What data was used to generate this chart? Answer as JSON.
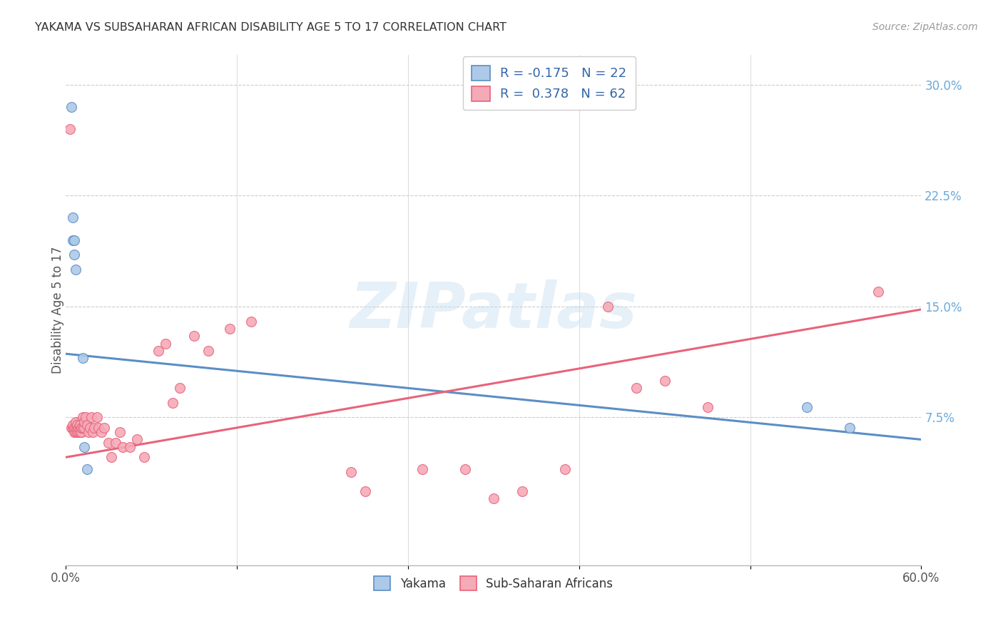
{
  "title": "YAKAMA VS SUBSAHARAN AFRICAN DISABILITY AGE 5 TO 17 CORRELATION CHART",
  "source": "Source: ZipAtlas.com",
  "ylabel": "Disability Age 5 to 17",
  "xlim": [
    0.0,
    0.6
  ],
  "ylim": [
    -0.025,
    0.32
  ],
  "xticks": [
    0.0,
    0.12,
    0.24,
    0.36,
    0.48,
    0.6
  ],
  "xticklabels": [
    "0.0%",
    "",
    "",
    "",
    "",
    "60.0%"
  ],
  "yticks_right": [
    0.075,
    0.15,
    0.225,
    0.3
  ],
  "yticklabels_right": [
    "7.5%",
    "15.0%",
    "22.5%",
    "30.0%"
  ],
  "legend_r1": "-0.175",
  "legend_n1": "22",
  "legend_r2": "0.378",
  "legend_n2": "62",
  "color_yakama": "#adc9e8",
  "color_subsaharan": "#f5aab8",
  "color_line_yakama": "#5b8ec4",
  "color_line_subsaharan": "#e8637a",
  "color_title": "#333333",
  "color_source": "#999999",
  "color_axis_right": "#6aaadd",
  "watermark_color": "#c8dff0",
  "grid_color": "#cccccc",
  "background_color": "#ffffff",
  "yakama_x": [
    0.004,
    0.005,
    0.005,
    0.006,
    0.006,
    0.007,
    0.007,
    0.007,
    0.008,
    0.008,
    0.009,
    0.009,
    0.01,
    0.01,
    0.01,
    0.011,
    0.011,
    0.012,
    0.013,
    0.015,
    0.52,
    0.55
  ],
  "yakama_y": [
    0.285,
    0.195,
    0.21,
    0.195,
    0.185,
    0.175,
    0.07,
    0.068,
    0.068,
    0.07,
    0.068,
    0.072,
    0.065,
    0.068,
    0.072,
    0.065,
    0.07,
    0.115,
    0.055,
    0.04,
    0.082,
    0.068
  ],
  "subsaharan_x": [
    0.003,
    0.004,
    0.005,
    0.005,
    0.006,
    0.006,
    0.007,
    0.007,
    0.007,
    0.008,
    0.008,
    0.008,
    0.009,
    0.009,
    0.01,
    0.01,
    0.01,
    0.011,
    0.011,
    0.012,
    0.012,
    0.013,
    0.013,
    0.014,
    0.015,
    0.016,
    0.017,
    0.018,
    0.019,
    0.02,
    0.022,
    0.023,
    0.025,
    0.027,
    0.03,
    0.032,
    0.035,
    0.038,
    0.04,
    0.045,
    0.05,
    0.055,
    0.065,
    0.07,
    0.075,
    0.08,
    0.09,
    0.1,
    0.115,
    0.13,
    0.2,
    0.21,
    0.25,
    0.28,
    0.3,
    0.32,
    0.35,
    0.38,
    0.4,
    0.42,
    0.45,
    0.57
  ],
  "subsaharan_y": [
    0.27,
    0.068,
    0.068,
    0.07,
    0.065,
    0.068,
    0.065,
    0.068,
    0.072,
    0.065,
    0.068,
    0.07,
    0.065,
    0.068,
    0.065,
    0.068,
    0.07,
    0.065,
    0.068,
    0.068,
    0.075,
    0.068,
    0.072,
    0.075,
    0.07,
    0.065,
    0.068,
    0.075,
    0.065,
    0.068,
    0.075,
    0.068,
    0.065,
    0.068,
    0.058,
    0.048,
    0.058,
    0.065,
    0.055,
    0.055,
    0.06,
    0.048,
    0.12,
    0.125,
    0.085,
    0.095,
    0.13,
    0.12,
    0.135,
    0.14,
    0.038,
    0.025,
    0.04,
    0.04,
    0.02,
    0.025,
    0.04,
    0.15,
    0.095,
    0.1,
    0.082,
    0.16
  ],
  "line_yakama_x0": 0.0,
  "line_yakama_y0": 0.118,
  "line_yakama_x1": 0.6,
  "line_yakama_y1": 0.06,
  "line_subsaharan_x0": 0.0,
  "line_subsaharan_y0": 0.048,
  "line_subsaharan_x1": 0.6,
  "line_subsaharan_y1": 0.148
}
